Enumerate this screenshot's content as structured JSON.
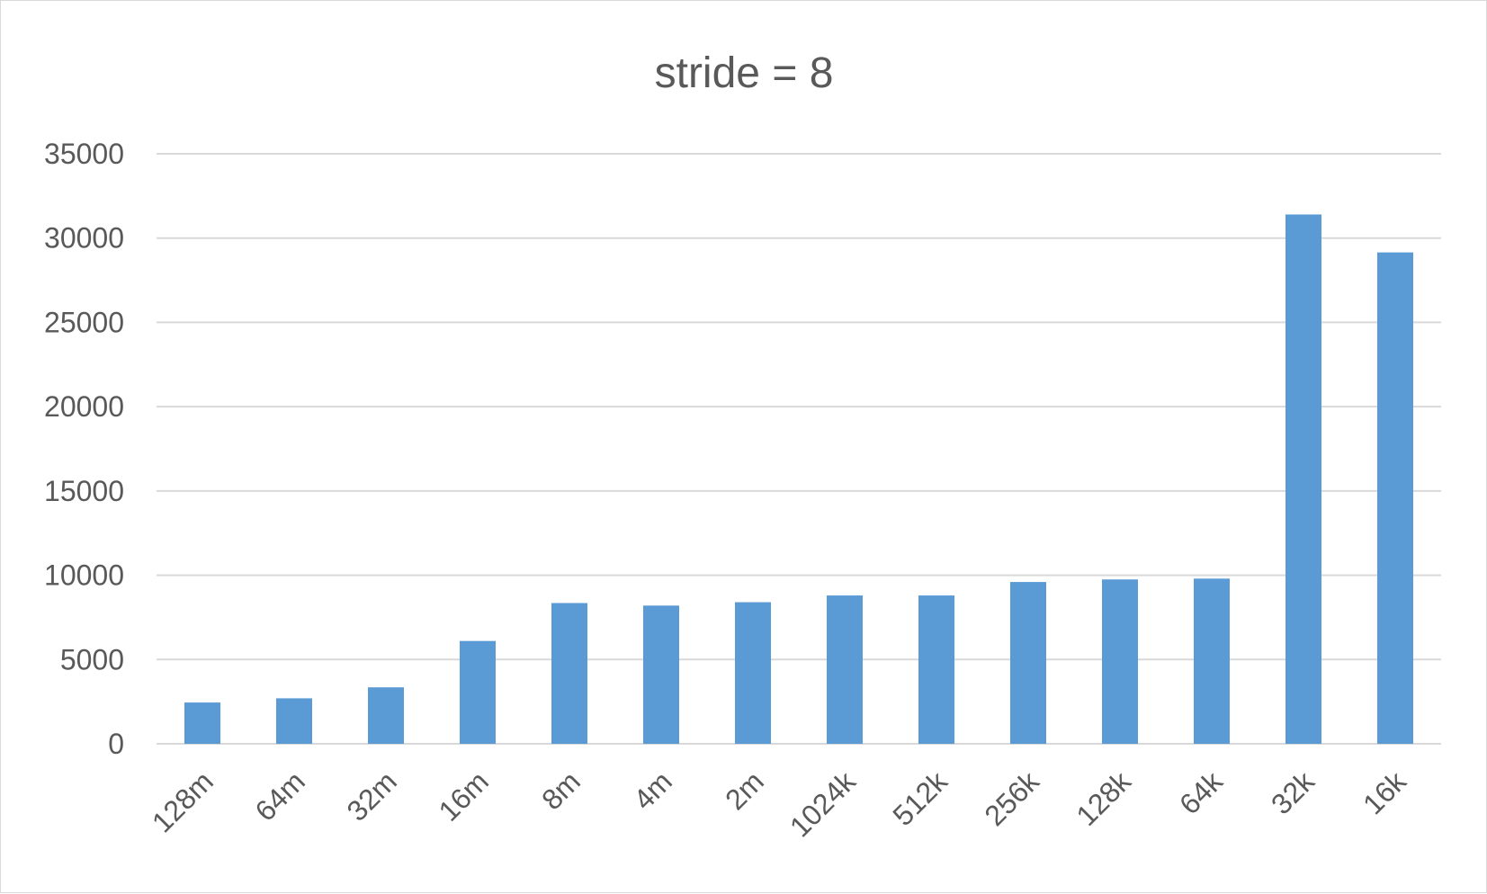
{
  "chart_data": {
    "type": "bar",
    "title": "stride = 8",
    "xlabel": "",
    "ylabel": "",
    "categories": [
      "128m",
      "64m",
      "32m",
      "16m",
      "8m",
      "4m",
      "2m",
      "1024k",
      "512k",
      "256k",
      "128k",
      "64k",
      "32k",
      "16k"
    ],
    "series": [
      {
        "values": [
          2450,
          2700,
          3350,
          6100,
          8350,
          8200,
          8400,
          8800,
          8800,
          9600,
          9750,
          9800,
          31400,
          29150
        ]
      }
    ],
    "ylim": [
      0,
      35000
    ],
    "yticks": [
      0,
      5000,
      10000,
      15000,
      20000,
      25000,
      30000,
      35000
    ],
    "grid": true,
    "legend": "none",
    "colors": {
      "bar": "#5b9bd5",
      "grid": "#d9d9d9",
      "text": "#595959",
      "border": "#d9d9d9"
    }
  }
}
